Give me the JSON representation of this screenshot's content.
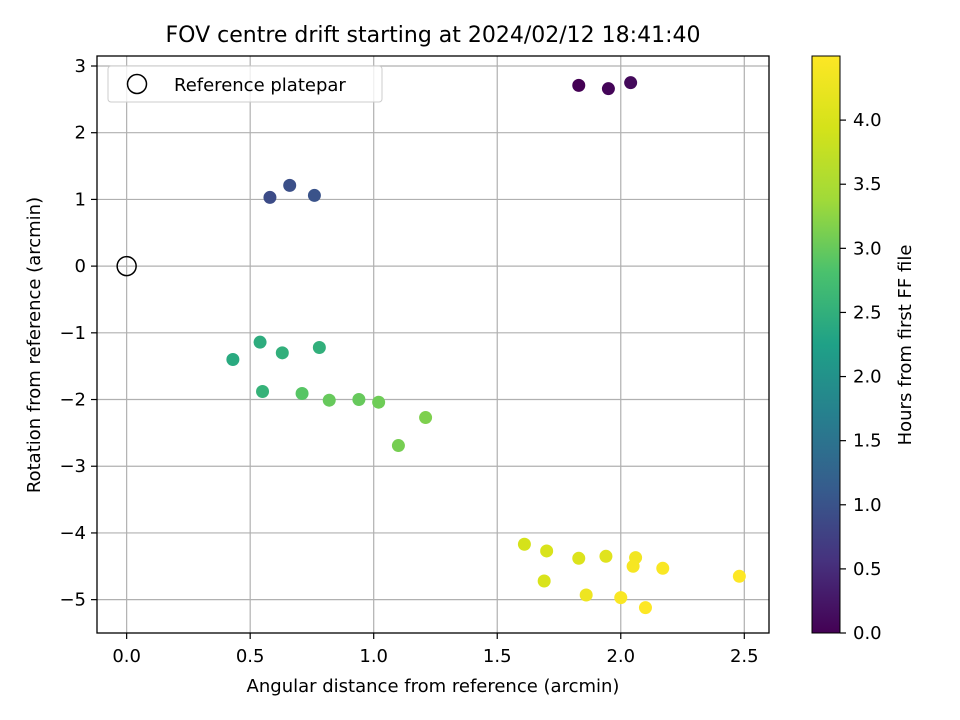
{
  "chart_data": {
    "type": "scatter",
    "title": "FOV centre drift starting at 2024/02/12 18:41:40",
    "xlabel": "Angular distance from reference (arcmin)",
    "ylabel": "Rotation from reference (arcmin)",
    "xlim": [
      -0.12,
      2.6
    ],
    "ylim": [
      -5.5,
      3.15
    ],
    "xticks": [
      0.0,
      0.5,
      1.0,
      1.5,
      2.0,
      2.5
    ],
    "xtick_labels": [
      "0.0",
      "0.5",
      "1.0",
      "1.5",
      "2.0",
      "2.5"
    ],
    "yticks": [
      3,
      2,
      1,
      0,
      -1,
      -2,
      -3,
      -4,
      -5
    ],
    "ytick_labels": [
      "3",
      "2",
      "1",
      "0",
      "−1",
      "−2",
      "−3",
      "−4",
      "−5"
    ],
    "grid": true,
    "legend": {
      "position": "top-left",
      "entries": [
        "Reference platepar"
      ]
    },
    "reference_point": {
      "x": 0.0,
      "y": 0.0,
      "label": "Reference platepar"
    },
    "colorbar": {
      "label": "Hours from first FF file",
      "range": [
        0.0,
        4.5
      ],
      "ticks": [
        0.0,
        0.5,
        1.0,
        1.5,
        2.0,
        2.5,
        3.0,
        3.5,
        4.0
      ],
      "tick_labels": [
        "0.0",
        "0.5",
        "1.0",
        "1.5",
        "2.0",
        "2.5",
        "3.0",
        "3.5",
        "4.0"
      ],
      "colormap": "viridis"
    },
    "points": [
      {
        "x": 1.83,
        "y": 2.71,
        "c": 0.0
      },
      {
        "x": 1.95,
        "y": 2.66,
        "c": 0.05
      },
      {
        "x": 2.04,
        "y": 2.75,
        "c": 0.1
      },
      {
        "x": 0.58,
        "y": 1.03,
        "c": 0.9
      },
      {
        "x": 0.66,
        "y": 1.21,
        "c": 0.95
      },
      {
        "x": 0.76,
        "y": 1.06,
        "c": 1.0
      },
      {
        "x": 0.43,
        "y": -1.4,
        "c": 2.4
      },
      {
        "x": 0.54,
        "y": -1.14,
        "c": 2.45
      },
      {
        "x": 0.63,
        "y": -1.3,
        "c": 2.5
      },
      {
        "x": 0.78,
        "y": -1.22,
        "c": 2.5
      },
      {
        "x": 0.55,
        "y": -1.88,
        "c": 2.55
      },
      {
        "x": 0.71,
        "y": -1.91,
        "c": 2.9
      },
      {
        "x": 0.82,
        "y": -2.01,
        "c": 3.0
      },
      {
        "x": 0.94,
        "y": -2.0,
        "c": 3.0
      },
      {
        "x": 1.02,
        "y": -2.04,
        "c": 3.05
      },
      {
        "x": 1.1,
        "y": -2.69,
        "c": 3.1
      },
      {
        "x": 1.21,
        "y": -2.27,
        "c": 3.15
      },
      {
        "x": 1.61,
        "y": -4.17,
        "c": 3.95
      },
      {
        "x": 1.7,
        "y": -4.27,
        "c": 4.0
      },
      {
        "x": 1.83,
        "y": -4.38,
        "c": 4.05
      },
      {
        "x": 1.94,
        "y": -4.35,
        "c": 4.1
      },
      {
        "x": 1.69,
        "y": -4.72,
        "c": 4.0
      },
      {
        "x": 1.86,
        "y": -4.93,
        "c": 4.3
      },
      {
        "x": 2.06,
        "y": -4.37,
        "c": 4.35
      },
      {
        "x": 2.05,
        "y": -4.5,
        "c": 4.4
      },
      {
        "x": 2.0,
        "y": -4.97,
        "c": 4.45
      },
      {
        "x": 2.17,
        "y": -4.53,
        "c": 4.45
      },
      {
        "x": 2.1,
        "y": -5.12,
        "c": 4.5
      },
      {
        "x": 2.48,
        "y": -4.65,
        "c": 4.5
      }
    ]
  }
}
